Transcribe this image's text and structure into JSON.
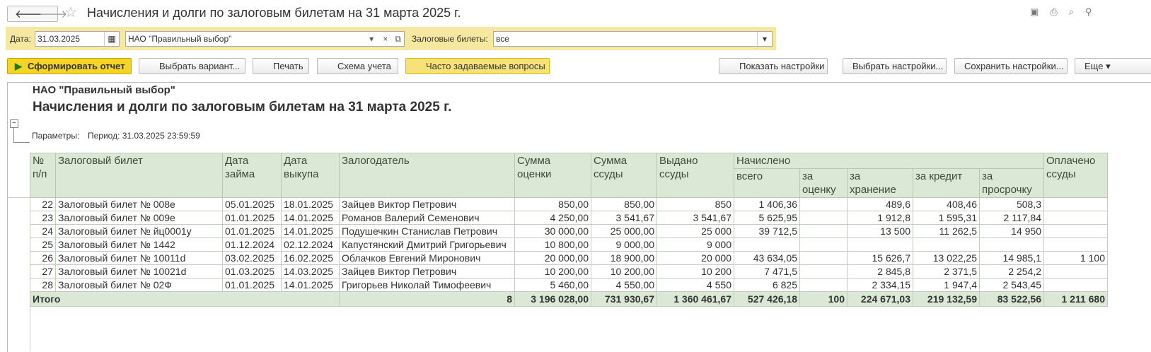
{
  "header": {
    "title": "Начисления и долги по залоговым билетам на 31 марта 2025 г."
  },
  "filters": {
    "date_label": "Дата:",
    "date": "31.03.2025",
    "org": "НАО \"Правильный выбор\"",
    "tickets_label": "Залоговые билеты:",
    "tickets": "все"
  },
  "toolbar": [
    "Сформировать отчет",
    "Выбрать вариант...",
    "Печать",
    "Схема учета",
    "Часто задаваемые вопросы",
    "Показать настройки",
    "Выбрать настройки...",
    "Сохранить настройки...",
    "Еще"
  ],
  "report": {
    "org": "НАО \"Правильный выбор\"",
    "title": "Начисления и долги по залоговым билетам на 31 марта 2025 г.",
    "params_label": "Параметры:",
    "params": "Период: 31.03.2025 23:59:59"
  },
  "table": {
    "headers": [
      "№\nп/п",
      "Залоговый билет",
      "Дата\nзайма",
      "Дата\nвыкупа",
      "Залогодатель",
      "Сумма\nоценки",
      "Сумма\nссуды",
      "Выдано\nссуды",
      "Оплачено\nссуды"
    ],
    "group": "Начислено",
    "subheaders": [
      "всего",
      "за\nоценку",
      "за\nхранение",
      "за кредит",
      "за\nпросрочку"
    ],
    "rows": [
      [
        "22",
        "Залоговый билет № 008е",
        "05.01.2025",
        "18.01.2025",
        "Зайцев Виктор Петрович",
        "850,00",
        "850,00",
        "850",
        "1 406,36",
        null,
        "489,6",
        "408,46",
        "508,3",
        null
      ],
      [
        "23",
        "Залоговый билет № 009е",
        "01.01.2025",
        "14.01.2025",
        "Романов Валерий Семенович",
        "4 250,00",
        "3 541,67",
        "3 541,67",
        "5 625,95",
        null,
        "1 912,8",
        "1 595,31",
        "2 117,84",
        null
      ],
      [
        "24",
        "Залоговый билет № йц0001у",
        "01.01.2025",
        "14.01.2025",
        "Подушечкин Станислав Петрович",
        "30 000,00",
        "25 000,00",
        "25 000",
        "39 712,5",
        null,
        "13 500",
        "11 262,5",
        "14 950",
        null
      ],
      [
        "25",
        "Залоговый билет № 1442",
        "01.12.2024",
        "02.12.2024",
        "Капустянский Дмитрий Григорьевич",
        "10 800,00",
        "9 000,00",
        "9 000",
        null,
        null,
        null,
        null,
        null,
        null
      ],
      [
        "26",
        "Залоговый билет № 10011d",
        "03.02.2025",
        "16.02.2025",
        "Облачков Евгений Миронович",
        "20 000,00",
        "18 900,00",
        "20 000",
        "43 634,05",
        null,
        "15 626,7",
        "13 022,25",
        "14 985,1",
        "1 100"
      ],
      [
        "27",
        "Залоговый билет № 10021d",
        "01.03.2025",
        "14.03.2025",
        "Зайцев Виктор Петрович",
        "10 200,00",
        "10 200,00",
        "10 200",
        "7 471,5",
        null,
        "2 845,8",
        "2 371,5",
        "2 254,2",
        null
      ],
      [
        "28",
        "Залоговый билет № 02Ф",
        "01.01.2025",
        "14.01.2025",
        "Григорьев Николай Тимофеевич",
        "5 460,00",
        "4 550,00",
        "4 550",
        "6 825",
        null,
        "2 334,15",
        "1 947,4",
        "2 543,45",
        null
      ]
    ],
    "total": {
      "label": "Итого",
      "values": [
        "8",
        "3 196 028,00",
        "731 930,67",
        "1 360 461,67",
        "527 426,18",
        "100",
        "224 671,03",
        "219 132,59",
        "83 522,56",
        "1 211 680"
      ]
    }
  }
}
